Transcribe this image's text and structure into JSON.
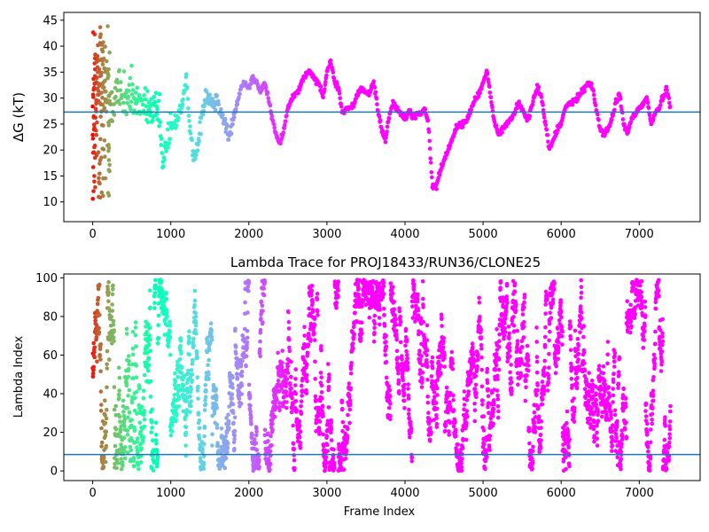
{
  "chart_data": [
    {
      "type": "scatter",
      "title": "",
      "xlabel": "",
      "ylabel": "ΔG (kT)",
      "xlim": [
        -370,
        7780
      ],
      "ylim": [
        6.2,
        46.5
      ],
      "xticks": [
        0,
        1000,
        2000,
        3000,
        4000,
        5000,
        6000,
        7000
      ],
      "yticks": [
        10,
        15,
        20,
        25,
        30,
        35,
        40,
        45
      ],
      "hline": 27.3,
      "grid": false,
      "colormap": "rainbow (red at frame 0 to violet at later frames)",
      "trace_keypoints_x": [
        0,
        100,
        200,
        300,
        400,
        500,
        600,
        700,
        800,
        860,
        900,
        950,
        1000,
        1050,
        1100,
        1150,
        1200,
        1250,
        1300,
        1350,
        1400,
        1450,
        1500,
        1550,
        1600,
        1650,
        1700,
        1750,
        1800,
        1850,
        1900,
        1950,
        2000,
        2050,
        2100,
        2150,
        2200,
        2250,
        2300,
        2350,
        2400,
        2450,
        2500,
        2550,
        2600,
        2650,
        2700,
        2750,
        2800,
        2850,
        2900,
        2950,
        3000,
        3050,
        3100,
        3150,
        3200,
        3250,
        3300,
        3350,
        3400,
        3450,
        3500,
        3550,
        3600,
        3650,
        3700,
        3750,
        3800,
        3850,
        3900,
        3950,
        4000,
        4050,
        4100,
        4150,
        4200,
        4250,
        4300,
        4350,
        4400,
        4450,
        4500,
        4550,
        4600,
        4650,
        4700,
        4750,
        4800,
        4850,
        4900,
        4950,
        5000,
        5050,
        5100,
        5150,
        5200,
        5250,
        5300,
        5350,
        5400,
        5450,
        5500,
        5550,
        5600,
        5650,
        5700,
        5750,
        5800,
        5850,
        5900,
        5950,
        6000,
        6050,
        6100,
        6150,
        6200,
        6250,
        6300,
        6350,
        6400,
        6450,
        6500,
        6550,
        6600,
        6650,
        6700,
        6750,
        6800,
        6850,
        6900,
        6950,
        7000,
        7050,
        7100,
        7150,
        7200,
        7250,
        7300,
        7350,
        7400
      ],
      "trace_keypoints_y": [
        30,
        31,
        30,
        31,
        31,
        30,
        29,
        28,
        27,
        26,
        16,
        22,
        24,
        25,
        27,
        29,
        33,
        24,
        18,
        21,
        27,
        31,
        30,
        29,
        30,
        27,
        25,
        22,
        26,
        29,
        32,
        33,
        32,
        34,
        33,
        31,
        33,
        30,
        26,
        23,
        21,
        24,
        28,
        30,
        31,
        32,
        34,
        35,
        35,
        33,
        33,
        30,
        35,
        37,
        33,
        32,
        27,
        28,
        28,
        29,
        31,
        32,
        31,
        31,
        33,
        28,
        24,
        22,
        27,
        29,
        28,
        27,
        26,
        28,
        26,
        27,
        27,
        28,
        25,
        13,
        13,
        16,
        18,
        20,
        22,
        24,
        25,
        25,
        26,
        28,
        30,
        31,
        33,
        35,
        30,
        25,
        23,
        24,
        25,
        26,
        27,
        29,
        28,
        26,
        27,
        30,
        32,
        30,
        25,
        20,
        22,
        24,
        25,
        28,
        29,
        29,
        30,
        31,
        32,
        33,
        32,
        28,
        24,
        23,
        24,
        26,
        29,
        31,
        25,
        23,
        26,
        27,
        28,
        29,
        30,
        25,
        27,
        28,
        30,
        32,
        28,
        27,
        26
      ]
    },
    {
      "type": "scatter",
      "title": "Lambda Trace for PROJ18433/RUN36/CLONE25",
      "xlabel": "Frame Index",
      "ylabel": "Lambda Index",
      "xlim": [
        -370,
        7780
      ],
      "ylim": [
        -5,
        102
      ],
      "xticks": [
        0,
        1000,
        2000,
        3000,
        4000,
        5000,
        6000,
        7000
      ],
      "yticks": [
        0,
        20,
        40,
        60,
        80,
        100
      ],
      "hline": 8.5,
      "grid": false,
      "colormap": "rainbow (red at frame 0 to violet at later frames)",
      "lambda_range": [
        0,
        99
      ],
      "frame_range": [
        0,
        7400
      ]
    }
  ]
}
